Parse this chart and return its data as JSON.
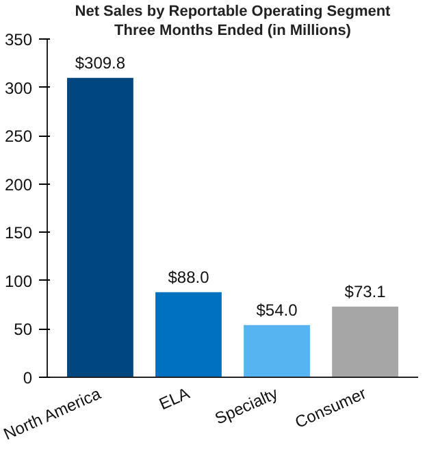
{
  "chart_data": {
    "type": "bar",
    "title": "Net Sales by Reportable Operating Segment",
    "subtitle": "Three Months Ended (in Millions)",
    "categories": [
      "North America",
      "ELA",
      "Specialty",
      "Consumer"
    ],
    "values": [
      309.8,
      88.0,
      54.0,
      73.1
    ],
    "colors": [
      "#00467f",
      "#0070c0",
      "#56b4f0",
      "#a6a6a6"
    ],
    "value_labels": [
      "$309.8",
      "$88.0",
      "$54.0",
      "$73.1"
    ],
    "ylim": [
      0,
      350
    ],
    "yticks": [
      0,
      50,
      100,
      150,
      200,
      250,
      300,
      350
    ],
    "grid": false
  }
}
